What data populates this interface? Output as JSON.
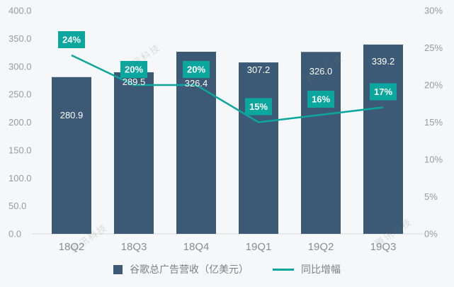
{
  "watermark": {
    "text": "腾讯科技"
  },
  "colors": {
    "bar": "#3c5a75",
    "line": "#0ba79f",
    "axis_text": "#9a9a9a",
    "background": "#f6f7f8"
  },
  "chart_data": {
    "type": "combo",
    "categories": [
      "18Q2",
      "18Q3",
      "18Q4",
      "19Q1",
      "19Q2",
      "19Q3"
    ],
    "series": [
      {
        "name": "谷歌总广告营收（亿美元）",
        "type": "bar",
        "axis": "left",
        "color": "#3c5a75",
        "values": [
          280.9,
          289.5,
          326.4,
          307.2,
          326.0,
          339.2
        ],
        "value_labels": [
          "280.9",
          "289.5",
          "326.4",
          "307.2",
          "326.0",
          "339.2"
        ]
      },
      {
        "name": "同比增幅",
        "type": "line",
        "axis": "right",
        "color": "#0ba79f",
        "values": [
          24,
          20,
          20,
          15,
          16,
          17
        ],
        "labels": [
          "24%",
          "20%",
          "20%",
          "15%",
          "16%",
          "17%"
        ]
      }
    ],
    "left_axis": {
      "min": 0,
      "max": 400,
      "step": 50,
      "ticks": [
        "400.0",
        "350.0",
        "300.0",
        "250.0",
        "200.0",
        "150.0",
        "100.0",
        "50.0",
        "0.0"
      ]
    },
    "right_axis": {
      "min": 0,
      "max": 30,
      "step": 5,
      "ticks": [
        "30%",
        "25%",
        "20%",
        "15%",
        "10%",
        "5%",
        "0%"
      ]
    },
    "grid": false,
    "legend_position": "bottom"
  }
}
